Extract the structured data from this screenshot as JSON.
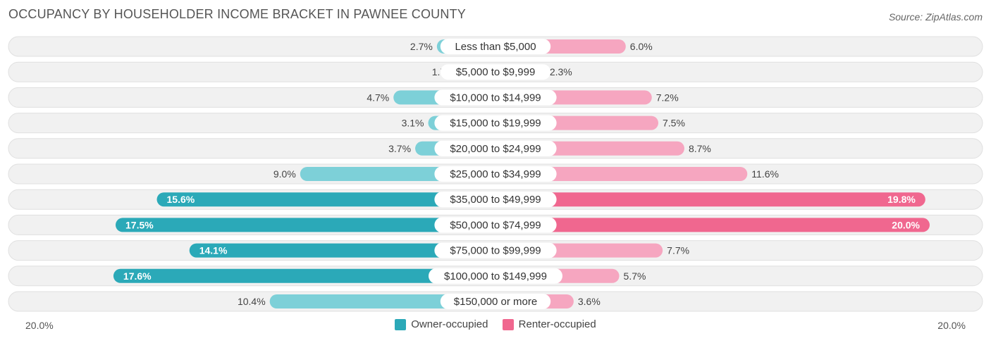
{
  "title": "OCCUPANCY BY HOUSEHOLDER INCOME BRACKET IN PAWNEE COUNTY",
  "source": "Source: ZipAtlas.com",
  "axis": {
    "left_label": "20.0%",
    "right_label": "20.0%"
  },
  "legend": {
    "owner_label": "Owner-occupied",
    "renter_label": "Renter-occupied"
  },
  "colors": {
    "owner_strong": "#2ba9b8",
    "owner_light": "#7dd0d8",
    "renter_strong": "#f0678f",
    "renter_light": "#f6a6c0",
    "row_bg": "#eeeeee"
  },
  "chart_data": {
    "type": "bar",
    "orientation": "horizontal-diverging",
    "xlim": [
      -20,
      20
    ],
    "categories": [
      "Less than $5,000",
      "$5,000 to $9,999",
      "$10,000 to $14,999",
      "$15,000 to $19,999",
      "$20,000 to $24,999",
      "$25,000 to $34,999",
      "$35,000 to $49,999",
      "$50,000 to $74,999",
      "$75,000 to $99,999",
      "$100,000 to $149,999",
      "$150,000 or more"
    ],
    "series": [
      {
        "name": "Owner-occupied",
        "values": [
          2.7,
          1.7,
          4.7,
          3.1,
          3.7,
          9.0,
          15.6,
          17.5,
          14.1,
          17.6,
          10.4
        ]
      },
      {
        "name": "Renter-occupied",
        "values": [
          6.0,
          2.3,
          7.2,
          7.5,
          8.7,
          11.6,
          19.8,
          20.0,
          7.7,
          5.7,
          3.6
        ]
      }
    ]
  }
}
